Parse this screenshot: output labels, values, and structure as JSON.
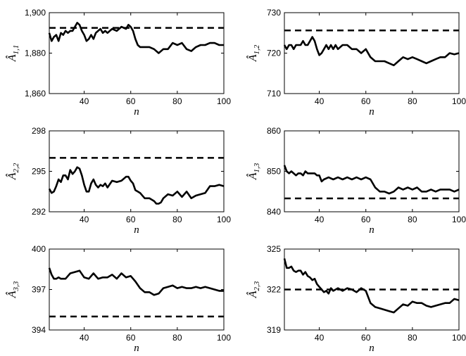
{
  "chart_data": [
    {
      "type": "line",
      "ylabel": {
        "symbol": "Â",
        "subscript": "1,1"
      },
      "xlabel": "n",
      "xlim": [
        25,
        100
      ],
      "ylim": [
        1860,
        1900
      ],
      "xticks": [
        "40",
        "60",
        "80",
        "100"
      ],
      "yticks": [
        "1,860",
        "1,880",
        "1,900"
      ],
      "yticks_values": [
        1860,
        1880,
        1900
      ],
      "reference": 1892.5,
      "series": [
        {
          "style": "solid",
          "x": [
            25,
            26,
            27,
            28,
            29,
            30,
            31,
            32,
            33,
            34,
            35,
            36,
            37,
            38,
            39,
            40,
            41,
            42,
            43,
            44,
            45,
            46,
            47,
            48,
            49,
            50,
            52,
            54,
            56,
            58,
            59,
            60,
            61,
            62,
            63,
            64,
            66,
            68,
            70,
            72,
            74,
            76,
            78,
            80,
            82,
            84,
            86,
            88,
            90,
            92,
            94,
            96,
            98,
            100
          ],
          "y": [
            1890,
            1886,
            1888,
            1889,
            1886,
            1890,
            1889,
            1891,
            1890,
            1891,
            1891,
            1893,
            1895,
            1894,
            1891,
            1889,
            1886,
            1887,
            1889,
            1887,
            1890,
            1891,
            1892,
            1890,
            1891,
            1890,
            1892,
            1891,
            1893,
            1892,
            1894,
            1893,
            1891,
            1887,
            1884,
            1883,
            1883,
            1883,
            1882,
            1880,
            1882,
            1882,
            1885,
            1884,
            1885,
            1882,
            1881,
            1883,
            1884,
            1884,
            1885,
            1885,
            1884,
            1884
          ]
        }
      ]
    },
    {
      "type": "line",
      "ylabel": {
        "symbol": "Â",
        "subscript": "1,2"
      },
      "xlabel": "n",
      "xlim": [
        25,
        100
      ],
      "ylim": [
        710,
        730
      ],
      "xticks": [
        "40",
        "60",
        "80",
        "100"
      ],
      "yticks": [
        "710",
        "720",
        "730"
      ],
      "yticks_values": [
        710,
        720,
        730
      ],
      "reference": 725.6,
      "series": [
        {
          "style": "solid",
          "x": [
            25,
            26,
            27,
            28,
            29,
            30,
            31,
            32,
            33,
            34,
            35,
            36,
            37,
            38,
            39,
            40,
            41,
            42,
            43,
            44,
            45,
            46,
            47,
            48,
            50,
            52,
            54,
            56,
            58,
            60,
            62,
            64,
            66,
            68,
            70,
            72,
            74,
            76,
            78,
            80,
            82,
            84,
            86,
            88,
            90,
            92,
            94,
            96,
            98,
            100
          ],
          "y": [
            722,
            721,
            722,
            722,
            721,
            722,
            722,
            722,
            723,
            722,
            722,
            723,
            724,
            723,
            721,
            719.5,
            720,
            721,
            722,
            721,
            722,
            721,
            722,
            721,
            722,
            722,
            721,
            721,
            720,
            721,
            719,
            718,
            718,
            718,
            717.5,
            717,
            718,
            719,
            718.5,
            719,
            718.5,
            718,
            717.5,
            718,
            718.5,
            719,
            719,
            720,
            719.7,
            720
          ]
        }
      ]
    },
    {
      "type": "line",
      "ylabel": {
        "symbol": "Â",
        "subscript": "2,2"
      },
      "xlabel": "n",
      "xlim": [
        25,
        100
      ],
      "ylim": [
        292,
        298
      ],
      "xticks": [
        "40",
        "60",
        "80",
        "100"
      ],
      "yticks": [
        "292",
        "295",
        "298"
      ],
      "yticks_values": [
        292,
        295,
        298
      ],
      "reference": 296,
      "series": [
        {
          "style": "solid",
          "x": [
            25,
            26,
            27,
            28,
            29,
            30,
            31,
            32,
            33,
            34,
            35,
            36,
            37,
            38,
            39,
            40,
            41,
            42,
            43,
            44,
            45,
            46,
            47,
            48,
            49,
            50,
            52,
            54,
            56,
            58,
            59,
            60,
            61,
            62,
            63,
            64,
            66,
            68,
            70,
            71,
            72,
            73,
            74,
            76,
            78,
            80,
            82,
            84,
            86,
            88,
            90,
            92,
            94,
            96,
            98,
            100
          ],
          "y": [
            293.7,
            293.4,
            293.5,
            293.9,
            294.4,
            294.2,
            294.7,
            294.7,
            294.4,
            295.1,
            294.8,
            295,
            295.3,
            295.2,
            294.7,
            294,
            293.5,
            293.5,
            294.1,
            294.4,
            294,
            293.8,
            294,
            293.9,
            294.1,
            293.8,
            294.3,
            294.2,
            294.3,
            294.6,
            294.6,
            294.3,
            294.1,
            293.6,
            293.5,
            293.4,
            293,
            293,
            292.8,
            292.6,
            292.6,
            292.7,
            293,
            293.3,
            293.2,
            293.5,
            293.1,
            293.5,
            293,
            293.2,
            293.3,
            293.4,
            293.9,
            293.9,
            294,
            293.9
          ]
        }
      ]
    },
    {
      "type": "line",
      "ylabel": {
        "symbol": "Â",
        "subscript": "1,3"
      },
      "xlabel": "n",
      "xlim": [
        25,
        100
      ],
      "ylim": [
        840,
        860
      ],
      "xticks": [
        "40",
        "60",
        "80",
        "100"
      ],
      "yticks": [
        "840",
        "850",
        "860"
      ],
      "yticks_values": [
        840,
        850,
        860
      ],
      "reference": 843.3,
      "series": [
        {
          "style": "solid",
          "x": [
            25,
            26,
            27,
            28,
            29,
            30,
            31,
            32,
            33,
            34,
            35,
            36,
            37,
            38,
            39,
            40,
            41,
            42,
            44,
            46,
            48,
            50,
            52,
            54,
            56,
            58,
            60,
            62,
            64,
            66,
            68,
            70,
            72,
            74,
            76,
            78,
            80,
            82,
            84,
            86,
            88,
            90,
            92,
            94,
            96,
            98,
            100
          ],
          "y": [
            851.5,
            850,
            849.5,
            850,
            849.5,
            849,
            849.5,
            849.5,
            849,
            850,
            849.5,
            849.5,
            849.5,
            849.5,
            849,
            849,
            847.5,
            848,
            848.5,
            848,
            848.5,
            848,
            848.5,
            848,
            848.5,
            848,
            848.5,
            848,
            846,
            845,
            845,
            844.5,
            845,
            846,
            845.5,
            846,
            845.5,
            846,
            845,
            845,
            845.5,
            845,
            845.5,
            845.5,
            845.5,
            845,
            845.5
          ]
        }
      ]
    },
    {
      "type": "line",
      "ylabel": {
        "symbol": "Â",
        "subscript": "3,3"
      },
      "xlabel": "n",
      "xlim": [
        25,
        100
      ],
      "ylim": [
        394,
        400
      ],
      "xticks": [
        "40",
        "60",
        "80",
        "100"
      ],
      "yticks": [
        "394",
        "397",
        "400"
      ],
      "yticks_values": [
        394,
        397,
        400
      ],
      "reference": 395,
      "series": [
        {
          "style": "solid",
          "x": [
            25,
            26,
            27,
            28,
            29,
            30,
            31,
            32,
            34,
            36,
            38,
            40,
            42,
            44,
            46,
            48,
            50,
            52,
            54,
            56,
            58,
            60,
            62,
            64,
            66,
            68,
            70,
            72,
            74,
            76,
            78,
            80,
            82,
            84,
            86,
            88,
            90,
            92,
            94,
            96,
            98,
            100
          ],
          "y": [
            398.6,
            398.1,
            397.8,
            397.8,
            397.9,
            397.8,
            397.8,
            397.8,
            398.2,
            398.3,
            398.4,
            397.9,
            397.8,
            398.2,
            397.8,
            397.9,
            397.9,
            398.1,
            397.8,
            398.2,
            397.9,
            398,
            397.6,
            397.1,
            396.8,
            396.8,
            396.6,
            396.7,
            397.1,
            397.2,
            397.3,
            397.1,
            397.2,
            397.1,
            397.1,
            397.2,
            397.1,
            397.2,
            397.1,
            397,
            396.9,
            396.9
          ]
        }
      ]
    },
    {
      "type": "line",
      "ylabel": {
        "symbol": "Â",
        "subscript": "2,3"
      },
      "xlabel": "n",
      "xlim": [
        25,
        100
      ],
      "ylim": [
        319,
        325
      ],
      "xticks": [
        "40",
        "60",
        "80",
        "100"
      ],
      "yticks": [
        "319",
        "322",
        "325"
      ],
      "yticks_values": [
        319,
        322,
        325
      ],
      "reference": 322,
      "series": [
        {
          "style": "solid",
          "x": [
            25,
            26,
            27,
            28,
            29,
            30,
            31,
            32,
            33,
            34,
            35,
            36,
            37,
            38,
            39,
            40,
            41,
            42,
            43,
            44,
            45,
            46,
            48,
            50,
            52,
            54,
            56,
            58,
            60,
            62,
            64,
            66,
            68,
            70,
            72,
            74,
            76,
            78,
            80,
            82,
            84,
            86,
            88,
            90,
            92,
            94,
            96,
            98,
            100
          ],
          "y": [
            324.3,
            323.6,
            323.6,
            323.7,
            323.4,
            323.3,
            323.4,
            323.4,
            323.1,
            323.3,
            323,
            322.9,
            322.7,
            322.8,
            322.4,
            322.2,
            322,
            321.8,
            321.9,
            321.7,
            322.1,
            321.9,
            322.1,
            321.9,
            322.1,
            322,
            321.8,
            322.1,
            321.9,
            321,
            320.7,
            320.6,
            320.5,
            320.4,
            320.3,
            320.6,
            320.9,
            320.8,
            321.1,
            321,
            321,
            320.8,
            320.7,
            320.8,
            320.9,
            321,
            321,
            321.3,
            321.2
          ]
        }
      ]
    }
  ]
}
